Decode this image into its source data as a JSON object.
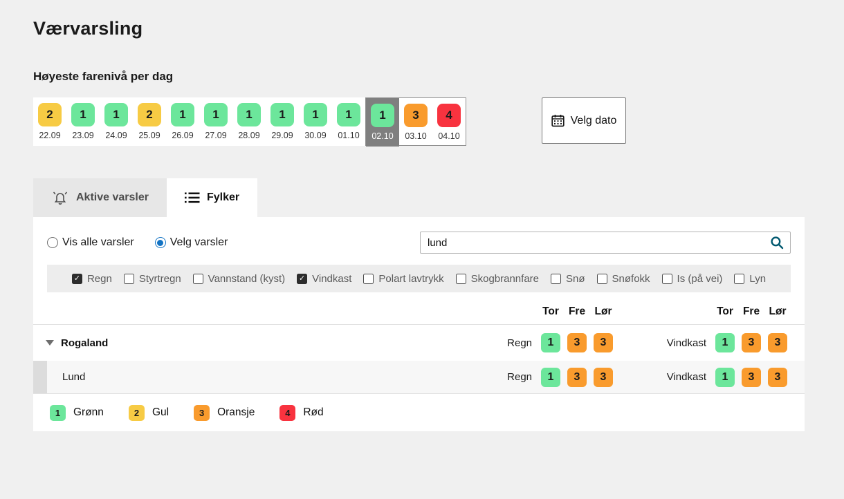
{
  "page": {
    "title": "Værvarsling"
  },
  "daily_overview": {
    "heading": "Høyeste farenivå per dag",
    "days": [
      {
        "date": "22.09",
        "level": 2,
        "selected": false
      },
      {
        "date": "23.09",
        "level": 1,
        "selected": false
      },
      {
        "date": "24.09",
        "level": 1,
        "selected": false
      },
      {
        "date": "25.09",
        "level": 2,
        "selected": false
      },
      {
        "date": "26.09",
        "level": 1,
        "selected": false
      },
      {
        "date": "27.09",
        "level": 1,
        "selected": false
      },
      {
        "date": "28.09",
        "level": 1,
        "selected": false
      },
      {
        "date": "29.09",
        "level": 1,
        "selected": false
      },
      {
        "date": "30.09",
        "level": 1,
        "selected": false
      },
      {
        "date": "01.10",
        "level": 1,
        "selected": false
      },
      {
        "date": "02.10",
        "level": 1,
        "selected": true
      },
      {
        "date": "03.10",
        "level": 3,
        "selected": false
      },
      {
        "date": "04.10",
        "level": 4,
        "selected": false
      }
    ],
    "window_start_index": 10,
    "velg_dato_label": "Velg dato"
  },
  "tabs": [
    {
      "label": "Aktive varsler",
      "icon": "bell-icon",
      "active": false
    },
    {
      "label": "Fylker",
      "icon": "list-icon",
      "active": true
    }
  ],
  "filters": {
    "radios": [
      {
        "label": "Vis alle varsler",
        "checked": false
      },
      {
        "label": "Velg varsler",
        "checked": true
      }
    ],
    "search": {
      "value": "lund"
    },
    "hazards": [
      {
        "label": "Regn",
        "checked": true
      },
      {
        "label": "Styrtregn",
        "checked": false
      },
      {
        "label": "Vannstand (kyst)",
        "checked": false
      },
      {
        "label": "Vindkast",
        "checked": true
      },
      {
        "label": "Polart lavtrykk",
        "checked": false
      },
      {
        "label": "Skogbrannfare",
        "checked": false
      },
      {
        "label": "Snø",
        "checked": false
      },
      {
        "label": "Snøfokk",
        "checked": false
      },
      {
        "label": "Is (på vei)",
        "checked": false
      },
      {
        "label": "Lyn",
        "checked": false
      }
    ]
  },
  "table": {
    "day_headers": [
      "Tor",
      "Fre",
      "Lør"
    ],
    "rows": [
      {
        "name": "Rogaland",
        "type": "county",
        "expanded": true,
        "groups": [
          {
            "hazard": "Regn",
            "values": [
              1,
              3,
              3
            ]
          },
          {
            "hazard": "Vindkast",
            "values": [
              1,
              3,
              3
            ]
          }
        ]
      },
      {
        "name": "Lund",
        "type": "municipality",
        "groups": [
          {
            "hazard": "Regn",
            "values": [
              1,
              3,
              3
            ]
          },
          {
            "hazard": "Vindkast",
            "values": [
              1,
              3,
              3
            ]
          }
        ]
      }
    ]
  },
  "legend": [
    {
      "level": 1,
      "label": "Grønn"
    },
    {
      "level": 2,
      "label": "Gul"
    },
    {
      "level": 3,
      "label": "Oransje"
    },
    {
      "level": 4,
      "label": "Rød"
    }
  ],
  "colors": {
    "level1": "#6CE69B",
    "level2": "#F7CB44",
    "level3": "#F99B2D",
    "level4": "#F8333F",
    "selected_day_bg": "#7F7F7F",
    "radio_accent": "#1273C4",
    "search_icon": "#00586F"
  }
}
